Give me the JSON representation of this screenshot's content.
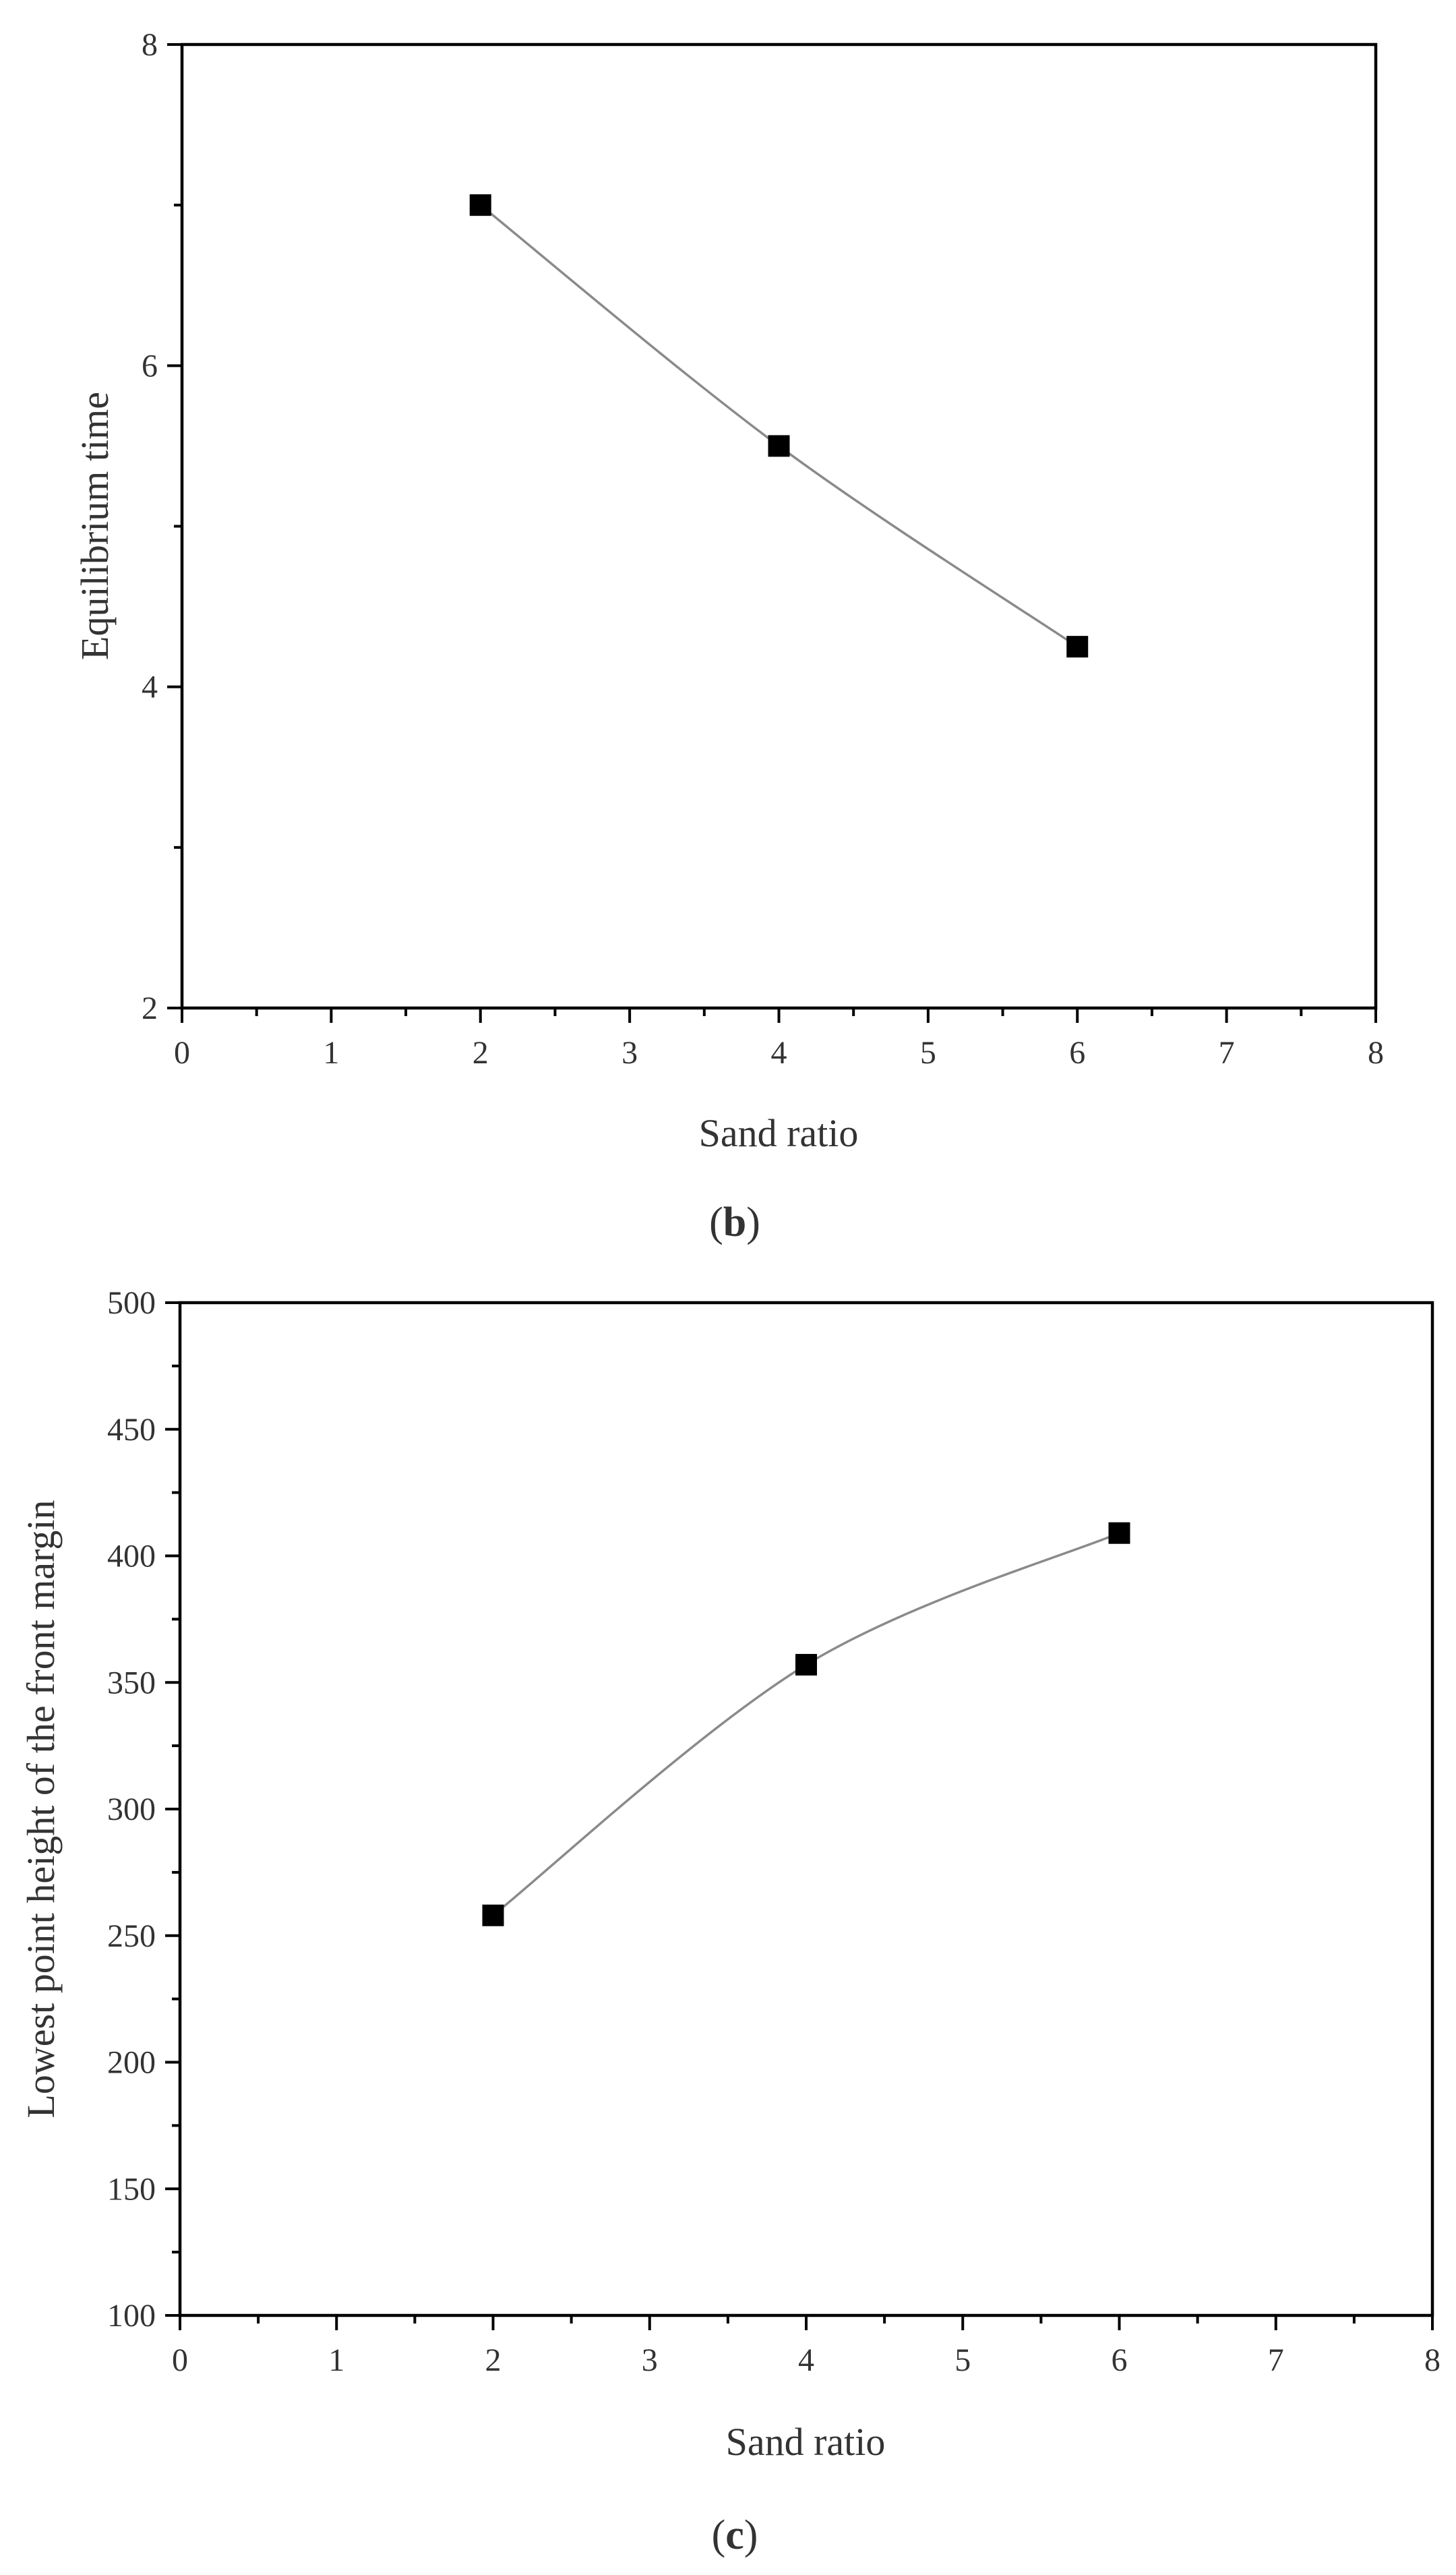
{
  "chart_data": [
    {
      "type": "line",
      "caption_letter": "b",
      "xlabel": "Sand ratio",
      "ylabel": "Equilibrium time",
      "xlim": [
        0,
        8
      ],
      "ylim": [
        2,
        8
      ],
      "x_ticks": [
        "0",
        "1",
        "2",
        "3",
        "4",
        "5",
        "6",
        "7",
        "8"
      ],
      "y_ticks": [
        "2",
        "4",
        "6",
        "8"
      ],
      "series": [
        {
          "x": [
            2,
            4,
            6
          ],
          "y": [
            7.0,
            5.5,
            4.25
          ]
        }
      ],
      "marker": "square",
      "line_color": "#8a8a8a",
      "marker_color": "#000000",
      "grid": false
    },
    {
      "type": "line",
      "caption_letter": "c",
      "xlabel": "Sand ratio",
      "ylabel": "Lowest point height of the front margin",
      "xlim": [
        0,
        8
      ],
      "ylim": [
        100,
        500
      ],
      "x_ticks": [
        "0",
        "1",
        "2",
        "3",
        "4",
        "5",
        "6",
        "7",
        "8"
      ],
      "y_ticks": [
        "100",
        "150",
        "200",
        "250",
        "300",
        "350",
        "400",
        "450",
        "500"
      ],
      "series": [
        {
          "x": [
            2,
            4,
            6
          ],
          "y": [
            258,
            357,
            409
          ]
        }
      ],
      "marker": "square",
      "line_color": "#8a8a8a",
      "marker_color": "#000000",
      "grid": false
    }
  ]
}
